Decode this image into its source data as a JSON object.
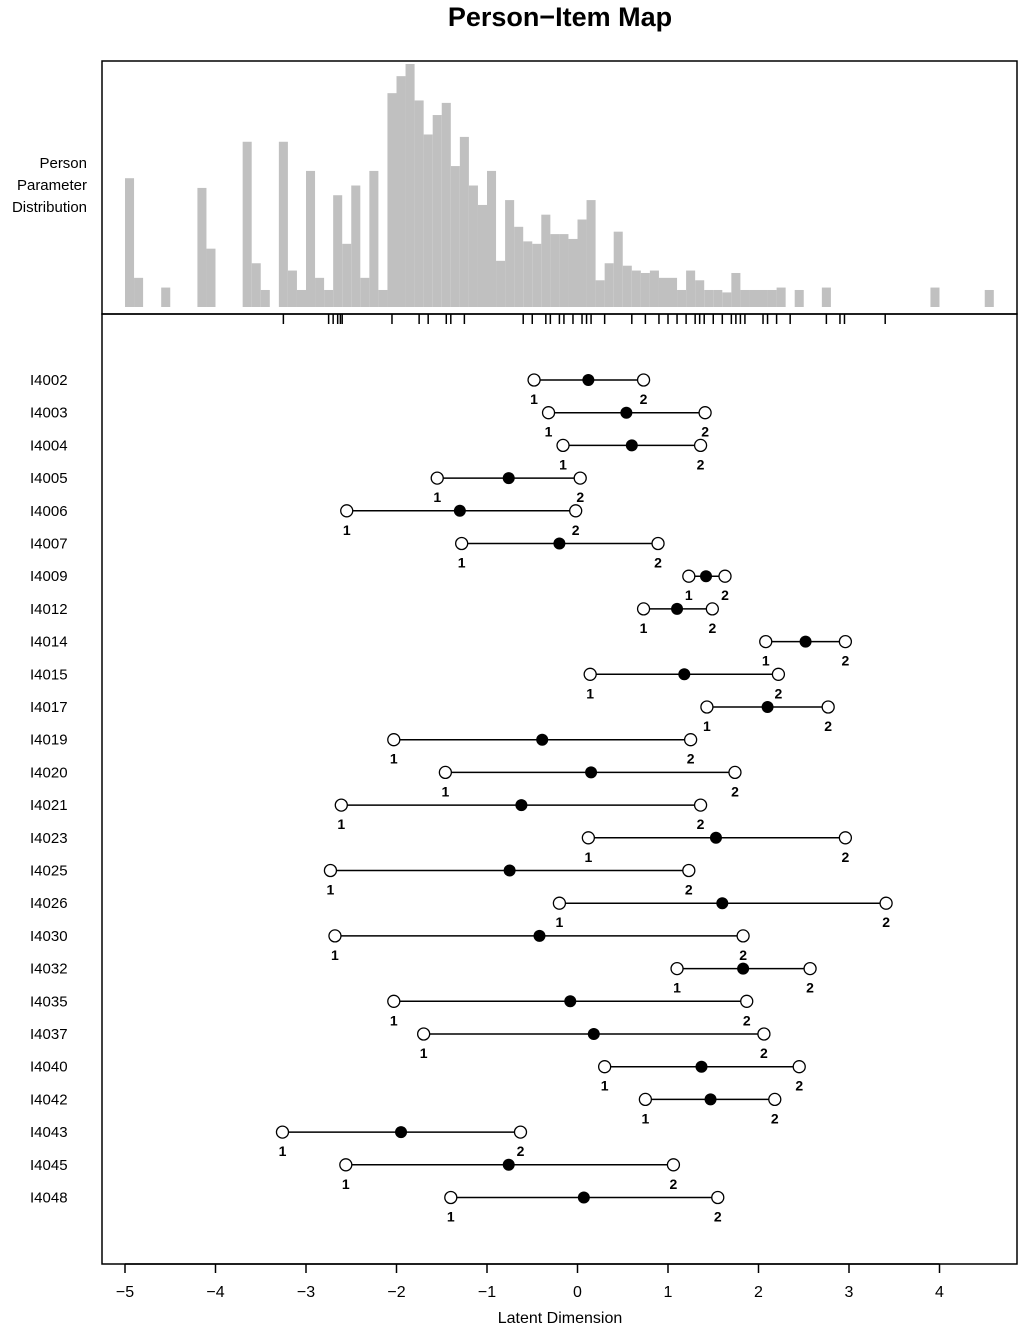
{
  "chart_data": {
    "type": "scatter",
    "title": "Person−Item Map",
    "xlabel": "Latent Dimension",
    "ylabel_person": "Person\nParameter\nDistribution",
    "xlim": [
      -5.25,
      4.7
    ],
    "x_ticks": [
      -5,
      -4,
      -3,
      -2,
      -1,
      0,
      1,
      2,
      3,
      4
    ],
    "x_tick_labels": [
      "−5",
      "−4",
      "−3",
      "−2",
      "−1",
      "0",
      "1",
      "2",
      "3",
      "4"
    ],
    "grid": false,
    "person_distribution": {
      "bin_width": 0.1,
      "bins": [
        [
          -4.95,
          0.53
        ],
        [
          -4.85,
          0.12
        ],
        [
          -4.55,
          0.08
        ],
        [
          -4.15,
          0.49
        ],
        [
          -4.05,
          0.24
        ],
        [
          -3.65,
          0.68
        ],
        [
          -3.55,
          0.18
        ],
        [
          -3.45,
          0.07
        ],
        [
          -3.25,
          0.68
        ],
        [
          -3.15,
          0.15
        ],
        [
          -3.05,
          0.07
        ],
        [
          -2.95,
          0.56
        ],
        [
          -2.85,
          0.12
        ],
        [
          -2.75,
          0.07
        ],
        [
          -2.65,
          0.46
        ],
        [
          -2.55,
          0.26
        ],
        [
          -2.45,
          0.5
        ],
        [
          -2.35,
          0.12
        ],
        [
          -2.25,
          0.56
        ],
        [
          -2.15,
          0.07
        ],
        [
          -2.05,
          0.88
        ],
        [
          -1.95,
          0.95
        ],
        [
          -1.85,
          1.0
        ],
        [
          -1.75,
          0.85
        ],
        [
          -1.65,
          0.71
        ],
        [
          -1.55,
          0.79
        ],
        [
          -1.45,
          0.84
        ],
        [
          -1.35,
          0.58
        ],
        [
          -1.25,
          0.7
        ],
        [
          -1.15,
          0.5
        ],
        [
          -1.05,
          0.42
        ],
        [
          -0.95,
          0.56
        ],
        [
          -0.85,
          0.19
        ],
        [
          -0.75,
          0.44
        ],
        [
          -0.65,
          0.33
        ],
        [
          -0.55,
          0.27
        ],
        [
          -0.45,
          0.26
        ],
        [
          -0.35,
          0.38
        ],
        [
          -0.25,
          0.3
        ],
        [
          -0.15,
          0.3
        ],
        [
          -0.05,
          0.28
        ],
        [
          0.05,
          0.36
        ],
        [
          0.15,
          0.44
        ],
        [
          0.25,
          0.11
        ],
        [
          0.35,
          0.18
        ],
        [
          0.45,
          0.31
        ],
        [
          0.55,
          0.17
        ],
        [
          0.65,
          0.15
        ],
        [
          0.75,
          0.14
        ],
        [
          0.85,
          0.15
        ],
        [
          0.95,
          0.12
        ],
        [
          1.05,
          0.12
        ],
        [
          1.15,
          0.07
        ],
        [
          1.25,
          0.15
        ],
        [
          1.35,
          0.11
        ],
        [
          1.45,
          0.07
        ],
        [
          1.55,
          0.07
        ],
        [
          1.65,
          0.06
        ],
        [
          1.75,
          0.14
        ],
        [
          1.85,
          0.07
        ],
        [
          1.95,
          0.07
        ],
        [
          2.05,
          0.07
        ],
        [
          2.15,
          0.07
        ],
        [
          2.25,
          0.08
        ],
        [
          2.45,
          0.07
        ],
        [
          2.75,
          0.08
        ],
        [
          3.95,
          0.08
        ],
        [
          4.55,
          0.07
        ]
      ]
    },
    "person_ticks": [
      -3.25,
      -2.75,
      -2.7,
      -2.65,
      -2.62,
      -2.6,
      -2.05,
      -1.75,
      -1.65,
      -1.45,
      -1.4,
      -1.25,
      -0.6,
      -0.5,
      -0.35,
      -0.3,
      -0.2,
      -0.15,
      -0.05,
      0.05,
      0.1,
      0.15,
      0.3,
      0.6,
      0.75,
      0.9,
      1.0,
      1.1,
      1.2,
      1.3,
      1.35,
      1.4,
      1.5,
      1.6,
      1.7,
      1.75,
      1.8,
      1.85,
      2.05,
      2.1,
      2.2,
      2.35,
      2.75,
      2.9,
      2.95,
      3.4
    ],
    "threshold_labels": [
      "1",
      "2"
    ],
    "items": [
      {
        "name": "I4002",
        "t1": -0.48,
        "t2": 0.73,
        "loc": 0.12
      },
      {
        "name": "I4003",
        "t1": -0.32,
        "t2": 1.41,
        "loc": 0.54
      },
      {
        "name": "I4004",
        "t1": -0.16,
        "t2": 1.36,
        "loc": 0.6
      },
      {
        "name": "I4005",
        "t1": -1.55,
        "t2": 0.03,
        "loc": -0.76
      },
      {
        "name": "I4006",
        "t1": -2.55,
        "t2": -0.02,
        "loc": -1.3
      },
      {
        "name": "I4007",
        "t1": -1.28,
        "t2": 0.89,
        "loc": -0.2
      },
      {
        "name": "I4009",
        "t1": 1.23,
        "t2": 1.63,
        "loc": 1.42
      },
      {
        "name": "I4012",
        "t1": 0.73,
        "t2": 1.49,
        "loc": 1.1
      },
      {
        "name": "I4014",
        "t1": 2.08,
        "t2": 2.96,
        "loc": 2.52
      },
      {
        "name": "I4015",
        "t1": 0.14,
        "t2": 2.22,
        "loc": 1.18
      },
      {
        "name": "I4017",
        "t1": 1.43,
        "t2": 2.77,
        "loc": 2.1
      },
      {
        "name": "I4019",
        "t1": -2.03,
        "t2": 1.25,
        "loc": -0.39
      },
      {
        "name": "I4020",
        "t1": -1.46,
        "t2": 1.74,
        "loc": 0.15
      },
      {
        "name": "I4021",
        "t1": -2.61,
        "t2": 1.36,
        "loc": -0.62
      },
      {
        "name": "I4023",
        "t1": 0.12,
        "t2": 2.96,
        "loc": 1.53
      },
      {
        "name": "I4025",
        "t1": -2.73,
        "t2": 1.23,
        "loc": -0.75
      },
      {
        "name": "I4026",
        "t1": -0.2,
        "t2": 3.41,
        "loc": 1.6
      },
      {
        "name": "I4030",
        "t1": -2.68,
        "t2": 1.83,
        "loc": -0.42
      },
      {
        "name": "I4032",
        "t1": 1.1,
        "t2": 2.57,
        "loc": 1.83
      },
      {
        "name": "I4035",
        "t1": -2.03,
        "t2": 1.87,
        "loc": -0.08
      },
      {
        "name": "I4037",
        "t1": -1.7,
        "t2": 2.06,
        "loc": 0.18
      },
      {
        "name": "I4040",
        "t1": 0.3,
        "t2": 2.45,
        "loc": 1.37
      },
      {
        "name": "I4042",
        "t1": 0.75,
        "t2": 2.18,
        "loc": 1.47
      },
      {
        "name": "I4043",
        "t1": -3.26,
        "t2": -0.63,
        "loc": -1.95
      },
      {
        "name": "I4045",
        "t1": -2.56,
        "t2": 1.06,
        "loc": -0.76
      },
      {
        "name": "I4048",
        "t1": -1.4,
        "t2": 1.55,
        "loc": 0.07
      }
    ]
  }
}
